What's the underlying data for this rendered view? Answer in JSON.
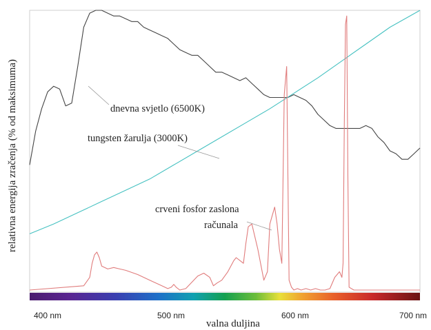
{
  "chart_data": {
    "type": "line",
    "title": "",
    "xlabel": "valna duljina",
    "ylabel": "relativna energija zračenja (% od maksimuma)",
    "xlim": [
      380,
      705
    ],
    "ylim": [
      0,
      100
    ],
    "x_ticks": [
      {
        "value": 400,
        "label": "400 nm"
      },
      {
        "value": 500,
        "label": "500 nm"
      },
      {
        "value": 600,
        "label": "600 nm"
      },
      {
        "value": 700,
        "label": "700 nm"
      }
    ],
    "grid": false,
    "legend": "none",
    "spectrum_bar": true,
    "series": [
      {
        "name": "dnevna svjetlo (6500K)",
        "color": "#444444",
        "x": [
          380,
          385,
          390,
          395,
          400,
          405,
          410,
          415,
          420,
          425,
          430,
          435,
          440,
          445,
          450,
          455,
          460,
          465,
          470,
          475,
          480,
          485,
          490,
          495,
          500,
          505,
          510,
          515,
          520,
          525,
          530,
          535,
          540,
          545,
          550,
          555,
          560,
          565,
          570,
          575,
          580,
          585,
          590,
          595,
          600,
          605,
          610,
          615,
          620,
          625,
          630,
          635,
          640,
          645,
          650,
          655,
          660,
          665,
          670,
          675,
          680,
          685,
          690,
          695,
          700,
          705
        ],
        "values": [
          45,
          57,
          65,
          71,
          73,
          72,
          66,
          67,
          80,
          94,
          99,
          100,
          100,
          99,
          98,
          98,
          97,
          96,
          96,
          94,
          93,
          92,
          91,
          90,
          88,
          86,
          85,
          84,
          84,
          82,
          80,
          78,
          78,
          77,
          76,
          75,
          76,
          74,
          72,
          70,
          69,
          69,
          69,
          69,
          70,
          69,
          68,
          66,
          63,
          61,
          59,
          58,
          58,
          58,
          58,
          58,
          59,
          58,
          55,
          53,
          50,
          49,
          47,
          47,
          49,
          51
        ]
      },
      {
        "name": "tungsten žarulja (3000K)",
        "color": "#45c1c1",
        "x": [
          380,
          400,
          420,
          440,
          460,
          480,
          500,
          520,
          540,
          560,
          580,
          600,
          620,
          640,
          660,
          680,
          705
        ],
        "values": [
          20.5,
          24,
          28,
          32,
          36,
          40,
          45,
          50,
          55,
          60,
          65,
          70.5,
          76,
          82,
          88,
          94,
          101
        ]
      },
      {
        "name": "crveni fosfor zaslona računala",
        "color": "#e07b7b",
        "x": [
          380,
          425,
          430,
          432,
          434,
          436,
          438,
          440,
          445,
          450,
          455,
          460,
          470,
          480,
          490,
          495,
          498,
          500,
          502,
          505,
          510,
          520,
          525,
          530,
          533,
          536,
          540,
          545,
          550,
          552,
          555,
          558,
          560,
          562,
          565,
          570,
          575,
          578,
          580,
          582,
          584,
          586,
          588,
          590,
          592,
          594,
          596,
          598,
          600,
          603,
          606,
          610,
          614,
          618,
          622,
          626,
          630,
          634,
          638,
          640,
          641,
          642,
          643,
          644,
          645,
          646,
          650,
          660,
          680,
          705
        ],
        "values": [
          0.5,
          2,
          5,
          10,
          13,
          14,
          12,
          9,
          8,
          8.5,
          8,
          7.5,
          6,
          4,
          2,
          1,
          1.5,
          2.5,
          1.5,
          0.5,
          1,
          5.5,
          6.5,
          5,
          2,
          3,
          4,
          7,
          11,
          12,
          11,
          10,
          17,
          23,
          24,
          15,
          4,
          7,
          24,
          27,
          30,
          24,
          15,
          10,
          70,
          80,
          4,
          1.5,
          0.5,
          1,
          0.5,
          1,
          0.5,
          1,
          0.5,
          0.5,
          1,
          5,
          7,
          5,
          10,
          60,
          95,
          98,
          40,
          1.5,
          0.5,
          0.5,
          0.5,
          0.5
        ]
      }
    ],
    "annotations": [
      {
        "text": "dnevna svjetlo (6500K)",
        "series": 0
      },
      {
        "text": "tungsten žarulja (3000K)",
        "series": 1
      },
      {
        "text": "crveni fosfor zaslona",
        "series": 2
      },
      {
        "text": "računala",
        "series": 2
      }
    ]
  }
}
